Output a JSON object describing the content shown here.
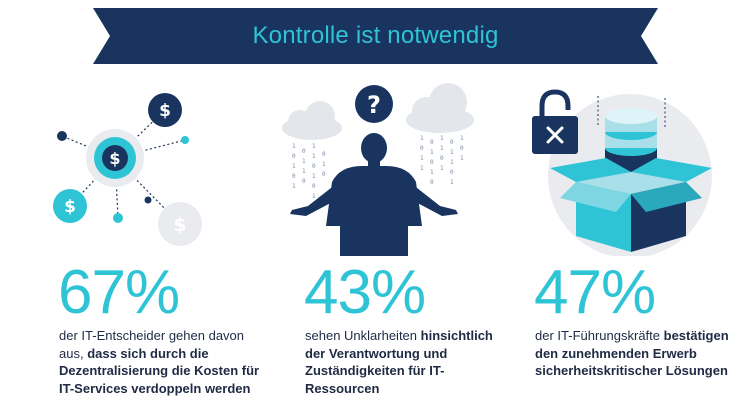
{
  "header": {
    "title": "Kontrolle ist notwendig"
  },
  "colors": {
    "navy": "#19355f",
    "teal": "#2ec4d6",
    "light_gray": "#e9ebef",
    "text": "#1f2a44"
  },
  "icons": {
    "col1": [
      "dollar-coin-icon",
      "network-icon"
    ],
    "col2": [
      "question-mark-icon",
      "cloud-icon",
      "person-icon"
    ],
    "col3": [
      "padlock-icon",
      "database-icon",
      "box-icon"
    ]
  },
  "stats": [
    {
      "value": "67%",
      "plain1": "der IT-Entscheider gehen davon aus, ",
      "bold": "dass sich durch die Dezentralisierung die Kosten für IT-Services verdoppeln werden",
      "plain2": ""
    },
    {
      "value": "43%",
      "plain1": "sehen Unklarheiten ",
      "bold": "hinsichtlich der Verantwortung und Zuständigkeiten für IT-Ressourcen",
      "plain2": ""
    },
    {
      "value": "47%",
      "plain1": "der IT-Führungskräfte ",
      "bold": "bestätigen den zunehmenden Erwerb sicherheitskritischer Lösungen",
      "plain2": ""
    }
  ]
}
